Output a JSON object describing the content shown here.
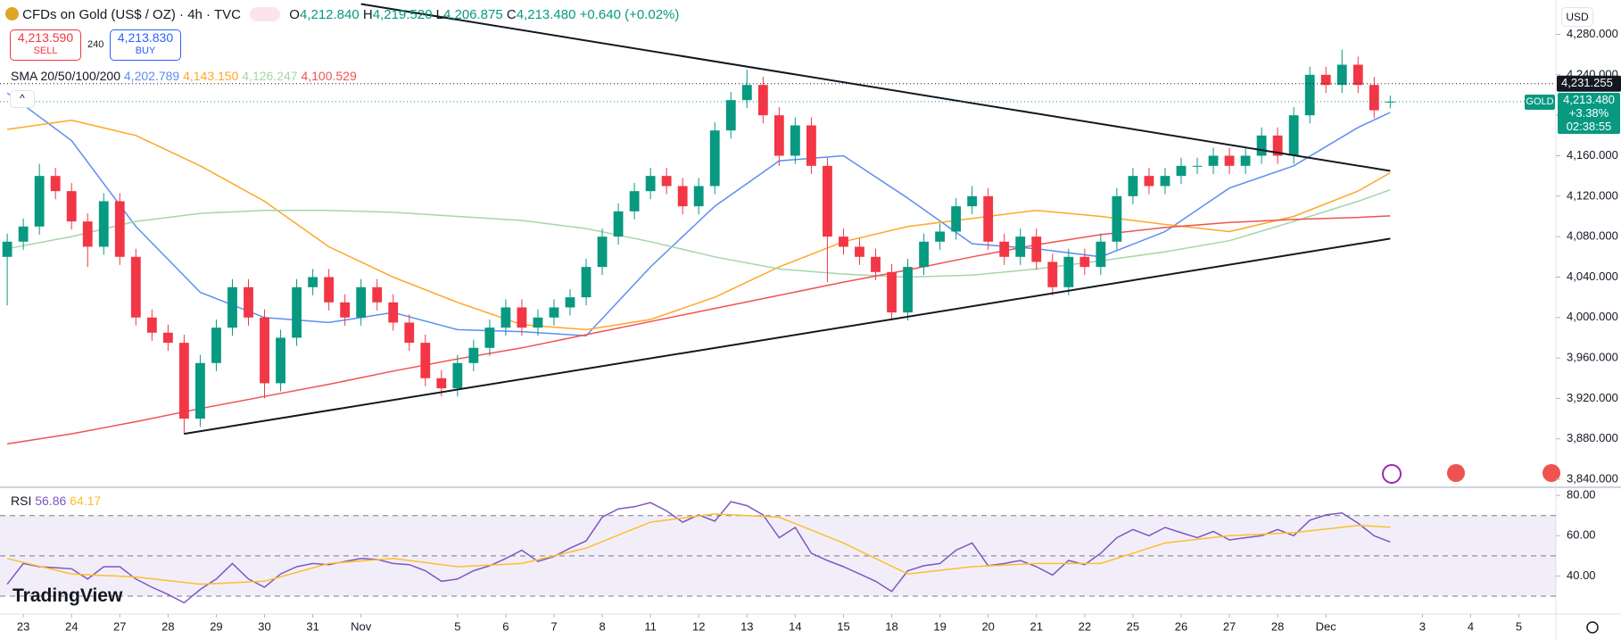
{
  "header": {
    "title": "CFDs on Gold (US$ / OZ) · 4h · TVC",
    "o_label": "O",
    "open": "4,212.840",
    "h_label": "H",
    "high": "4,219.520",
    "l_label": "L",
    "low": "4,206.875",
    "c_label": "C",
    "close": "4,213.480",
    "change": "+0.640 (+0.02%)",
    "sell_price": "4,213.590",
    "sell": "SELL",
    "spread": "240",
    "buy_price": "4,213.830",
    "buy": "BUY",
    "sma_label": "SMA 20/50/100/200",
    "currency": "USD",
    "symbol": "GOLD",
    "last_price": "4,213.480",
    "change_pct": "+3.38%",
    "countdown": "02:38:55",
    "logo": "TradingView"
  },
  "chart_data": [
    {
      "type": "candlestick",
      "up_color": "#089981",
      "down_color": "#f23645",
      "open": [
        4060,
        4075,
        4090,
        4140,
        4125,
        4095,
        4070,
        4115,
        4060,
        4000,
        3985,
        3975,
        3900,
        3955,
        3990,
        4030,
        4000,
        3935,
        3980,
        4030,
        4040,
        4015,
        4000,
        4030,
        4015,
        3995,
        3975,
        3940,
        3930,
        3955,
        3970,
        3990,
        4010,
        3990,
        4000,
        4010,
        4020,
        4050,
        4080,
        4105,
        4125,
        4140,
        4130,
        4110,
        4130,
        4185,
        4215,
        4230,
        4200,
        4160,
        4190,
        4150,
        4080,
        4070,
        4060,
        4045,
        4005,
        4050,
        4075,
        4085,
        4110,
        4120,
        4075,
        4060,
        4080,
        4055,
        4030,
        4060,
        4050,
        4075,
        4120,
        4140,
        4130,
        4140,
        4150,
        4150,
        4160,
        4150,
        4160,
        4180,
        4160,
        4200,
        4240,
        4230,
        4250,
        4230,
        4212.84
      ],
      "high": [
        4083,
        4098,
        4152,
        4148,
        4133,
        4103,
        4123,
        4123,
        4068,
        4008,
        3993,
        3983,
        3963,
        3998,
        4038,
        4038,
        4008,
        3988,
        4038,
        4048,
        4048,
        4023,
        4038,
        4038,
        4023,
        4003,
        3983,
        3948,
        3963,
        3978,
        3998,
        4018,
        4018,
        4008,
        4018,
        4028,
        4058,
        4088,
        4113,
        4133,
        4148,
        4148,
        4138,
        4138,
        4193,
        4223,
        4245,
        4238,
        4208,
        4198,
        4198,
        4158,
        4088,
        4078,
        4068,
        4053,
        4058,
        4083,
        4093,
        4118,
        4130,
        4128,
        4083,
        4088,
        4088,
        4063,
        4068,
        4068,
        4083,
        4128,
        4148,
        4148,
        4148,
        4158,
        4158,
        4168,
        4168,
        4168,
        4188,
        4188,
        4208,
        4248,
        4248,
        4265,
        4258,
        4238,
        4219.52
      ],
      "low": [
        4012,
        4067,
        4082,
        4117,
        4087,
        4050,
        4062,
        4052,
        3992,
        3977,
        3967,
        3885,
        3892,
        3947,
        3982,
        3992,
        3920,
        3927,
        3972,
        4022,
        4007,
        3992,
        3992,
        4007,
        3987,
        3967,
        3932,
        3922,
        3922,
        3947,
        3962,
        3982,
        3982,
        3982,
        3992,
        4002,
        4012,
        4042,
        4072,
        4097,
        4117,
        4122,
        4102,
        4102,
        4122,
        4177,
        4207,
        4192,
        4150,
        4152,
        4142,
        4035,
        4062,
        4052,
        4037,
        3997,
        3997,
        4042,
        4067,
        4077,
        4102,
        4067,
        4052,
        4052,
        4047,
        4022,
        4022,
        4042,
        4042,
        4067,
        4112,
        4122,
        4122,
        4132,
        4142,
        4142,
        4142,
        4142,
        4152,
        4152,
        4152,
        4192,
        4222,
        4222,
        4222,
        4197,
        4206.875
      ],
      "close": [
        4075,
        4090,
        4140,
        4125,
        4095,
        4070,
        4115,
        4060,
        4000,
        3985,
        3975,
        3900,
        3955,
        3990,
        4030,
        4000,
        3935,
        3980,
        4030,
        4040,
        4015,
        4000,
        4030,
        4015,
        3995,
        3975,
        3940,
        3930,
        3955,
        3970,
        3990,
        4010,
        3990,
        4000,
        4010,
        4020,
        4050,
        4080,
        4105,
        4125,
        4140,
        4130,
        4110,
        4130,
        4185,
        4215,
        4230,
        4200,
        4160,
        4190,
        4150,
        4080,
        4070,
        4060,
        4045,
        4005,
        4050,
        4075,
        4085,
        4110,
        4120,
        4075,
        4060,
        4080,
        4055,
        4030,
        4060,
        4050,
        4075,
        4120,
        4140,
        4130,
        4140,
        4150,
        4150,
        4160,
        4150,
        4160,
        4180,
        4160,
        4200,
        4240,
        4230,
        4250,
        4230,
        4205,
        4213.48
      ],
      "series": [
        {
          "color": "#5b8ff0",
          "value_label": "4,202.789",
          "x": [
            0,
            4,
            8,
            12,
            16,
            20,
            24,
            28,
            32,
            36,
            40,
            44,
            48,
            52,
            56,
            60,
            64,
            68,
            72,
            76,
            80,
            84,
            86
          ],
          "values": [
            4222,
            4175,
            4090,
            4025,
            4000,
            3995,
            4005,
            3988,
            3986,
            3982,
            4050,
            4110,
            4155,
            4160,
            4118,
            4073,
            4068,
            4060,
            4085,
            4128,
            4150,
            4188,
            4202.789
          ]
        },
        {
          "color": "#ffa726",
          "value_label": "4,143.150",
          "x": [
            0,
            4,
            8,
            12,
            16,
            20,
            24,
            28,
            32,
            36,
            40,
            44,
            48,
            52,
            56,
            60,
            64,
            68,
            72,
            76,
            80,
            84,
            86
          ],
          "values": [
            4186,
            4195,
            4180,
            4150,
            4115,
            4070,
            4040,
            4015,
            3993,
            3988,
            3998,
            4020,
            4050,
            4075,
            4090,
            4098,
            4106,
            4100,
            4092,
            4085,
            4100,
            4125,
            4143.15
          ]
        },
        {
          "color": "#a5d6a7",
          "value_label": "4,126.247",
          "x": [
            0,
            4,
            8,
            12,
            16,
            20,
            24,
            28,
            32,
            36,
            40,
            44,
            48,
            52,
            56,
            60,
            64,
            68,
            72,
            76,
            80,
            84,
            86
          ],
          "values": [
            4068,
            4080,
            4095,
            4103,
            4106,
            4106,
            4104,
            4100,
            4096,
            4088,
            4075,
            4060,
            4048,
            4043,
            4040,
            4042,
            4048,
            4056,
            4065,
            4076,
            4095,
            4115,
            4126.247
          ]
        },
        {
          "color": "#ef5350",
          "value_label": "4,100.529",
          "x": [
            0,
            4,
            8,
            12,
            16,
            20,
            24,
            28,
            32,
            36,
            40,
            44,
            48,
            52,
            56,
            60,
            64,
            68,
            72,
            76,
            80,
            84,
            86
          ],
          "values": [
            3875,
            3885,
            3897,
            3910,
            3922,
            3934,
            3947,
            3959,
            3970,
            3983,
            3996,
            4009,
            4022,
            4035,
            4047,
            4060,
            4072,
            4082,
            4089,
            4094,
            4097,
            4099,
            4100.529
          ]
        }
      ],
      "trendlines": [
        {
          "x": [
            22,
            86
          ],
          "y": [
            4310,
            4145
          ]
        },
        {
          "x": [
            11,
            86
          ],
          "y": [
            3885,
            4078
          ]
        }
      ],
      "trendline_color": "#131722",
      "price_lines": [
        {
          "value": 4231.255,
          "label": "4,231.255"
        }
      ],
      "xlim": [
        -0.45,
        96.3
      ],
      "ylim": [
        3833,
        4314
      ],
      "yticks": [
        {
          "value": 3840,
          "label": "3,840.000"
        },
        {
          "value": 3880,
          "label": "3,880.000"
        },
        {
          "value": 3920,
          "label": "3,920.000"
        },
        {
          "value": 3960,
          "label": "3,960.000"
        },
        {
          "value": 4000,
          "label": "4,000.000"
        },
        {
          "value": 4040,
          "label": "4,040.000"
        },
        {
          "value": 4080,
          "label": "4,080.000"
        },
        {
          "value": 4120,
          "label": "4,120.000"
        },
        {
          "value": 4160,
          "label": "4,160.000"
        },
        {
          "value": 4200,
          "label": "4,200.000"
        },
        {
          "value": 4240,
          "label": "4,240.000"
        },
        {
          "value": 4280,
          "label": "4,280.000"
        }
      ],
      "xticks": [
        {
          "value": 1,
          "label": "23"
        },
        {
          "value": 4,
          "label": "24"
        },
        {
          "value": 7,
          "label": "27"
        },
        {
          "value": 10,
          "label": "28"
        },
        {
          "value": 13,
          "label": "29"
        },
        {
          "value": 16,
          "label": "30"
        },
        {
          "value": 19,
          "label": "31"
        },
        {
          "value": 22,
          "label": "Nov"
        },
        {
          "value": 28,
          "label": "5"
        },
        {
          "value": 31,
          "label": "6"
        },
        {
          "value": 34,
          "label": "7"
        },
        {
          "value": 37,
          "label": "8"
        },
        {
          "value": 40,
          "label": "11"
        },
        {
          "value": 43,
          "label": "12"
        },
        {
          "value": 46,
          "label": "13"
        },
        {
          "value": 49,
          "label": "14"
        },
        {
          "value": 52,
          "label": "15"
        },
        {
          "value": 55,
          "label": "18"
        },
        {
          "value": 58,
          "label": "19"
        },
        {
          "value": 61,
          "label": "20"
        },
        {
          "value": 64,
          "label": "21"
        },
        {
          "value": 67,
          "label": "22"
        },
        {
          "value": 70,
          "label": "25"
        },
        {
          "value": 73,
          "label": "26"
        },
        {
          "value": 76,
          "label": "27"
        },
        {
          "value": 79,
          "label": "28"
        },
        {
          "value": 82,
          "label": "Dec"
        },
        {
          "value": 88,
          "label": "3"
        },
        {
          "value": 91,
          "label": "4"
        },
        {
          "value": 94,
          "label": "5"
        }
      ]
    },
    {
      "type": "line",
      "title": "RSI",
      "xlim": [
        -0.45,
        96.3
      ],
      "ylim": [
        22,
        83.6
      ],
      "yticks": [
        {
          "value": 40,
          "label": "40.00"
        },
        {
          "value": 60,
          "label": "60.00"
        },
        {
          "value": 80,
          "label": "80.00"
        }
      ],
      "levels": [
        70,
        50,
        30
      ],
      "series": [
        {
          "color": "#7e57c2",
          "value_label": "56.86",
          "values": [
            35.9,
            46.2,
            44.6,
            44.1,
            43.6,
            38.5,
            44.6,
            44.6,
            38.5,
            34.4,
            30.8,
            26.7,
            33.3,
            38.5,
            46.2,
            38.5,
            34.4,
            41.0,
            44.6,
            46.2,
            45.6,
            47.2,
            48.7,
            48.2,
            46.2,
            45.6,
            42.6,
            37.4,
            38.5,
            42.6,
            45.1,
            48.7,
            52.8,
            47.2,
            49.7,
            53.8,
            57.4,
            69.2,
            73.3,
            74.4,
            76.4,
            72.3,
            66.7,
            70.3,
            67.2,
            76.9,
            74.9,
            70.3,
            59.0,
            64.1,
            51.3,
            47.7,
            44.6,
            41.0,
            37.4,
            32.3,
            42.6,
            45.1,
            46.2,
            52.8,
            56.4,
            45.1,
            46.2,
            47.7,
            44.6,
            40.5,
            47.7,
            45.6,
            51.3,
            59.0,
            63.1,
            60.0,
            64.1,
            61.5,
            59.0,
            62.1,
            57.9,
            59.0,
            60.0,
            63.1,
            60.0,
            67.7,
            70.3,
            71.3,
            66.2,
            60.0,
            56.86
          ]
        },
        {
          "color": "#fbc02d",
          "value_label": "64.17",
          "x": [
            0,
            4,
            8,
            12,
            16,
            20,
            24,
            28,
            32,
            36,
            40,
            44,
            48,
            52,
            56,
            60,
            64,
            68,
            72,
            76,
            80,
            84,
            86
          ],
          "values": [
            48.7,
            41.0,
            39.5,
            35.9,
            37.4,
            46.2,
            48.7,
            44.6,
            46.2,
            53.8,
            66.7,
            70.8,
            69.2,
            56.4,
            41.0,
            44.6,
            46.2,
            46.2,
            56.4,
            60.0,
            61.5,
            65.1,
            64.17
          ]
        }
      ]
    }
  ]
}
